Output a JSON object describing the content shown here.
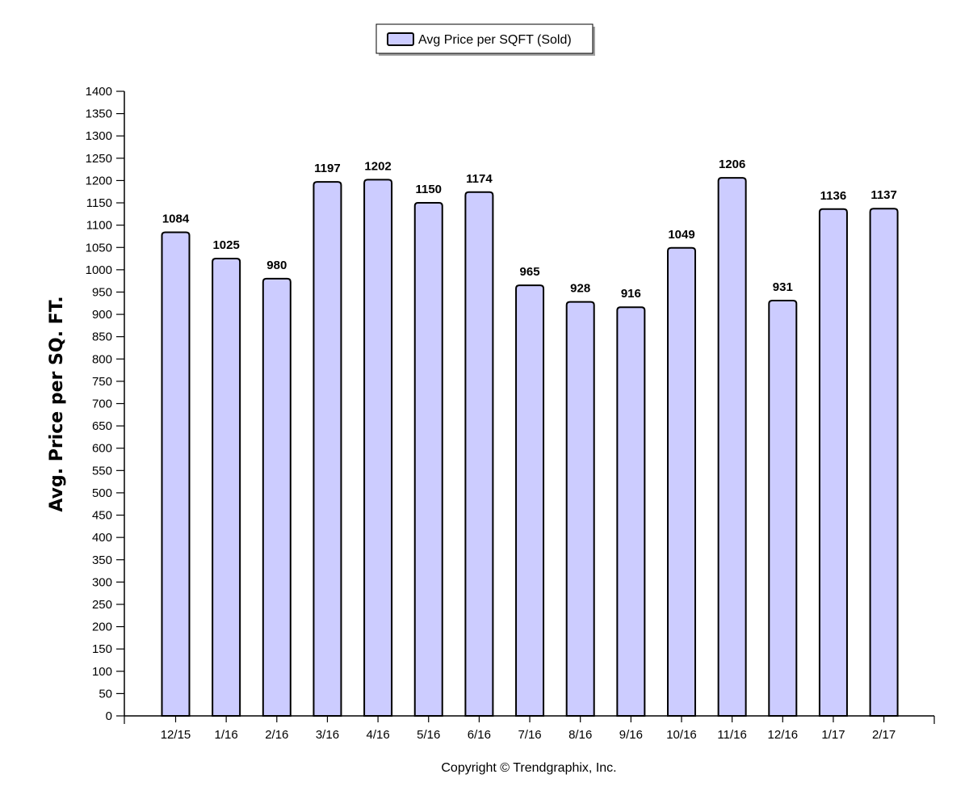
{
  "legend": {
    "label": "Avg Price per SQFT (Sold)"
  },
  "footer": {
    "copyright": "Copyright © Trendgraphix, Inc."
  },
  "colors": {
    "bar_fill": "#ccccff",
    "bar_stroke": "#000000",
    "axis": "#000000"
  },
  "chart_data": {
    "type": "bar",
    "categories": [
      "12/15",
      "1/16",
      "2/16",
      "3/16",
      "4/16",
      "5/16",
      "6/16",
      "7/16",
      "8/16",
      "9/16",
      "10/16",
      "11/16",
      "12/16",
      "1/17",
      "2/17"
    ],
    "series": [
      {
        "name": "Avg Price per SQFT (Sold)",
        "values": [
          1084,
          1025,
          980,
          1197,
          1202,
          1150,
          1174,
          965,
          928,
          916,
          1049,
          1206,
          931,
          1136,
          1137
        ]
      }
    ],
    "ylabel": "Avg. Price per SQ. FT.",
    "xlabel": "",
    "ylim": [
      0,
      1400
    ],
    "yticks": [
      "0",
      "50",
      "100",
      "150",
      "200",
      "250",
      "300",
      "350",
      "400",
      "450",
      "500",
      "550",
      "600",
      "650",
      "700",
      "750",
      "800",
      "850",
      "900",
      "950",
      "1000",
      "1050",
      "1100",
      "1150",
      "1200",
      "1250",
      "1300",
      "1350",
      "1400"
    ],
    "data_labels": [
      "1084",
      "1025",
      "980",
      "1197",
      "1202",
      "1150",
      "1174",
      "965",
      "928",
      "916",
      "1049",
      "1206",
      "931",
      "1136",
      "1137"
    ],
    "legend_position": "top-center",
    "grid": false
  }
}
